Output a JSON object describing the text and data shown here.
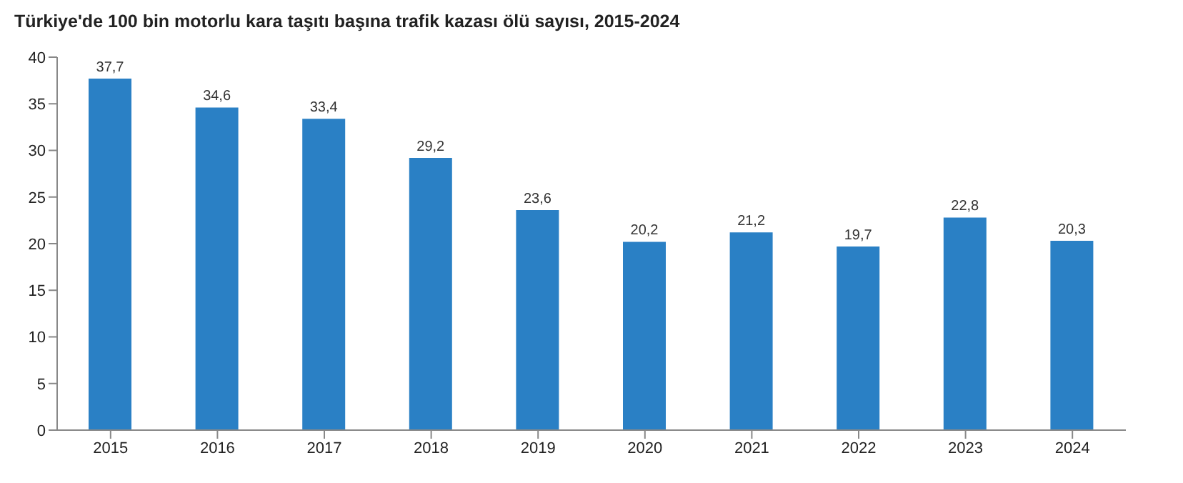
{
  "chart_data": {
    "type": "bar",
    "title": "Türkiye'de 100 bin motorlu kara taşıtı başına trafik kazası ölü sayısı, 2015-2024",
    "categories": [
      "2015",
      "2016",
      "2017",
      "2018",
      "2019",
      "2020",
      "2021",
      "2022",
      "2023",
      "2024"
    ],
    "values": [
      37.7,
      34.6,
      33.4,
      29.2,
      23.6,
      20.2,
      21.2,
      19.7,
      22.8,
      20.3
    ],
    "value_labels": [
      "37,7",
      "34,6",
      "33,4",
      "29,2",
      "23,6",
      "20,2",
      "21,2",
      "19,7",
      "22,8",
      "20,3"
    ],
    "color": "#2a80c5",
    "ylim": [
      0,
      40
    ],
    "yticks": [
      0,
      5,
      10,
      15,
      20,
      25,
      30,
      35,
      40
    ],
    "grid": false,
    "legend": false
  }
}
